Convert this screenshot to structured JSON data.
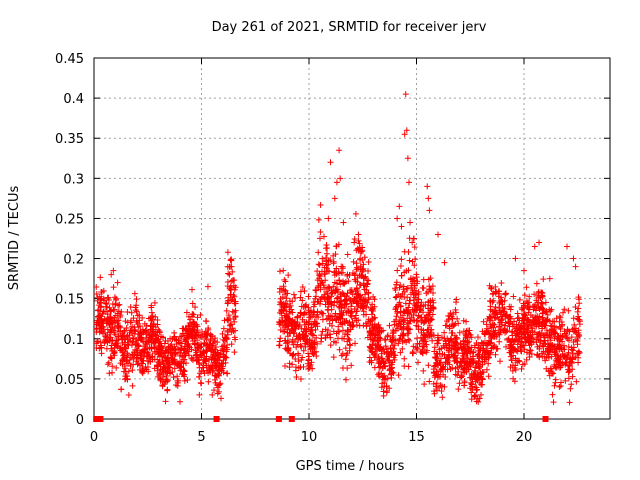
{
  "chart_data": {
    "type": "scatter",
    "title": "Day 261 of 2021, SRMTID for receiver jerv",
    "xlabel": "GPS time / hours",
    "ylabel": "SRMTID / TECUs",
    "xlim": [
      0,
      24
    ],
    "ylim": [
      0,
      0.45
    ],
    "x_ticks": [
      0,
      5,
      10,
      15,
      20
    ],
    "x_tick_labels": [
      "0",
      "5",
      "10",
      "15",
      "20"
    ],
    "y_ticks": [
      0,
      0.05,
      0.1,
      0.15,
      0.2,
      0.25,
      0.3,
      0.35,
      0.4,
      0.45
    ],
    "y_tick_labels": [
      "0",
      "0.05",
      "0.1",
      "0.15",
      "0.2",
      "0.25",
      "0.3",
      "0.35",
      "0.4",
      "0.45"
    ],
    "grid": true,
    "marker": "+",
    "series_color": "#ff0000",
    "segments": [
      {
        "start": 0.1,
        "end": 2.0,
        "base": 0.105,
        "spread": 0.03,
        "density": 160
      },
      {
        "start": 2.0,
        "end": 6.2,
        "base": 0.085,
        "spread": 0.025,
        "density": 160
      },
      {
        "start": 6.2,
        "end": 6.6,
        "base": 0.13,
        "spread": 0.04,
        "density": 160
      },
      {
        "start": 8.6,
        "end": 10.4,
        "base": 0.115,
        "spread": 0.035,
        "density": 160
      },
      {
        "start": 10.4,
        "end": 12.8,
        "base": 0.15,
        "spread": 0.045,
        "density": 160
      },
      {
        "start": 12.8,
        "end": 14.0,
        "base": 0.09,
        "spread": 0.03,
        "density": 160
      },
      {
        "start": 14.0,
        "end": 15.8,
        "base": 0.13,
        "spread": 0.045,
        "density": 160
      },
      {
        "start": 15.8,
        "end": 18.4,
        "base": 0.08,
        "spread": 0.03,
        "density": 160
      },
      {
        "start": 18.4,
        "end": 20.6,
        "base": 0.115,
        "spread": 0.03,
        "density": 160
      },
      {
        "start": 20.6,
        "end": 22.6,
        "base": 0.095,
        "spread": 0.035,
        "density": 160
      }
    ],
    "points": [
      [
        0.8,
        0.18
      ],
      [
        0.9,
        0.185
      ],
      [
        1.1,
        0.17
      ],
      [
        6.4,
        0.19
      ],
      [
        6.3,
        0.18
      ],
      [
        5.3,
        0.165
      ],
      [
        8.9,
        0.16
      ],
      [
        9.3,
        0.155
      ],
      [
        11.0,
        0.32
      ],
      [
        11.2,
        0.275
      ],
      [
        11.3,
        0.295
      ],
      [
        11.4,
        0.335
      ],
      [
        11.45,
        0.3
      ],
      [
        10.9,
        0.25
      ],
      [
        11.6,
        0.245
      ],
      [
        11.8,
        0.205
      ],
      [
        12.1,
        0.22
      ],
      [
        12.3,
        0.23
      ],
      [
        14.1,
        0.25
      ],
      [
        14.2,
        0.265
      ],
      [
        14.3,
        0.24
      ],
      [
        14.45,
        0.355
      ],
      [
        14.5,
        0.405
      ],
      [
        14.55,
        0.36
      ],
      [
        14.6,
        0.325
      ],
      [
        14.65,
        0.295
      ],
      [
        14.7,
        0.245
      ],
      [
        14.8,
        0.22
      ],
      [
        15.5,
        0.29
      ],
      [
        15.6,
        0.26
      ],
      [
        15.55,
        0.275
      ],
      [
        16.0,
        0.23
      ],
      [
        16.3,
        0.195
      ],
      [
        19.6,
        0.2
      ],
      [
        20.0,
        0.185
      ],
      [
        20.5,
        0.215
      ],
      [
        20.7,
        0.22
      ],
      [
        21.2,
        0.175
      ],
      [
        22.0,
        0.215
      ],
      [
        22.4,
        0.19
      ],
      [
        22.3,
        0.2
      ],
      [
        4.9,
        0.03
      ],
      [
        5.5,
        0.03
      ],
      [
        17.7,
        0.028
      ],
      [
        18.0,
        0.03
      ],
      [
        16.3,
        0.04
      ],
      [
        13.5,
        0.045
      ]
    ],
    "zero_points_x": [
      0.1,
      0.3,
      5.7,
      8.6,
      9.2,
      21.0
    ]
  }
}
